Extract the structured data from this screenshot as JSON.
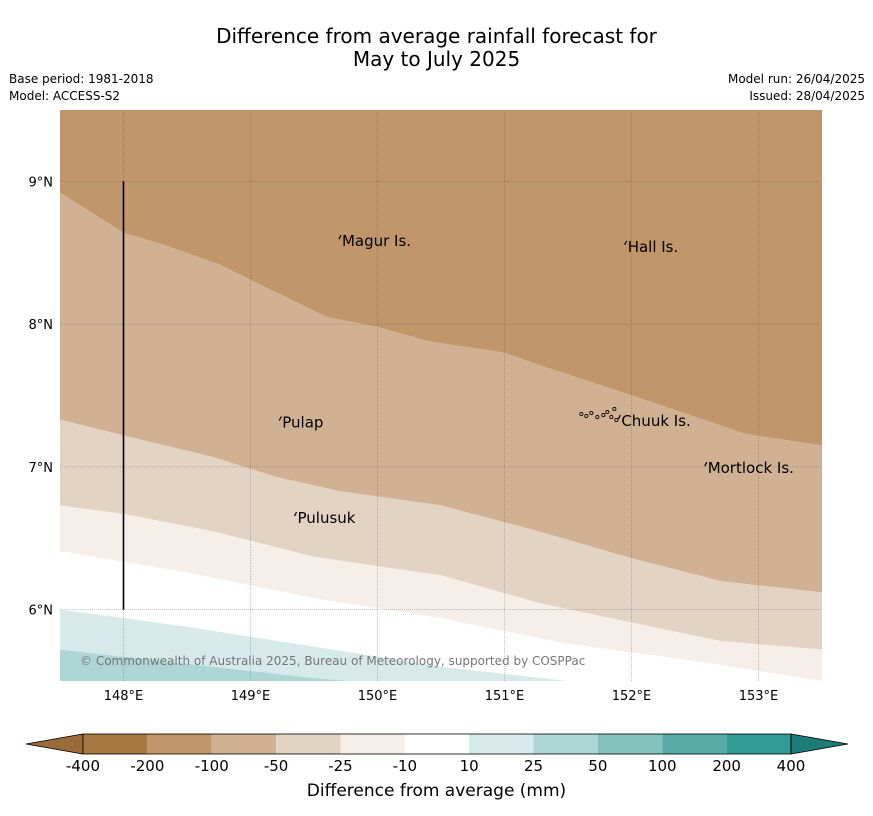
{
  "title": {
    "line1": "Difference from average rainfall forecast for",
    "line2": "May to July 2025"
  },
  "meta": {
    "base_period": "Base period: 1981-2018",
    "model": "Model: ACCESS-S2",
    "model_run": "Model run: 26/04/2025",
    "issued": "Issued: 28/04/2025"
  },
  "map": {
    "lat_ticks": [
      "9°N",
      "8°N",
      "7°N",
      "6°N"
    ],
    "lon_ticks": [
      "148°E",
      "149°E",
      "150°E",
      "151°E",
      "152°E",
      "153°E"
    ],
    "places": [
      {
        "name": "Magur Is.",
        "lon": 149.72,
        "lat": 8.56
      },
      {
        "name": "Hall Is.",
        "lon": 151.97,
        "lat": 8.52
      },
      {
        "name": "Pulap",
        "lon": 149.25,
        "lat": 7.29
      },
      {
        "name": "Chuuk Is.",
        "lon": 151.92,
        "lat": 7.3
      },
      {
        "name": "Mortlock Is.",
        "lon": 152.6,
        "lat": 6.97
      },
      {
        "name": "Pulusuk",
        "lon": 149.37,
        "lat": 6.62
      }
    ],
    "copyright": "© Commonwealth of Australia 2025, Bureau of Meteorology, supported by COSPPac",
    "extent": {
      "lon_min": 147.5,
      "lon_max": 153.5,
      "lat_min": 5.5,
      "lat_max": 9.5
    }
  },
  "colorbar": {
    "title": "Difference from average (mm)",
    "labels": [
      "-400",
      "-200",
      "-100",
      "-50",
      "-25",
      "-10",
      "10",
      "25",
      "50",
      "100",
      "200",
      "400"
    ],
    "colors": [
      "#a97742",
      "#c0966a",
      "#d1b193",
      "#e3d3c3",
      "#f5eee9",
      "#ffffff",
      "#d5eae9",
      "#add6d4",
      "#83c1bd",
      "#58aca7",
      "#309a95",
      "#1e7c78"
    ]
  }
}
